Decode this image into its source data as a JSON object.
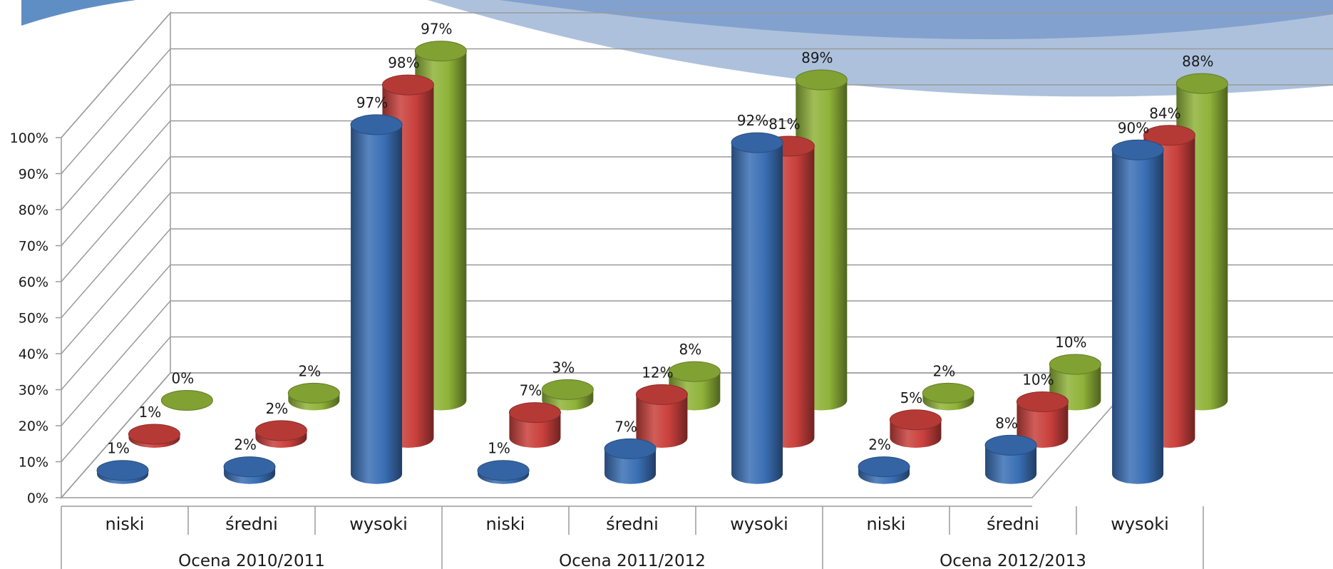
{
  "chart_data": {
    "type": "bar",
    "style": "3d-cylinder",
    "title": "",
    "xlabel": "",
    "ylabel": "",
    "ylim": [
      0,
      100
    ],
    "y_ticks": [
      "0%",
      "10%",
      "20%",
      "30%",
      "40%",
      "50%",
      "60%",
      "70%",
      "80%",
      "90%",
      "100%"
    ],
    "grid": true,
    "legend": "none",
    "groups": [
      "Ocena 2010/2011",
      "Ocena 2011/2012",
      "Ocena 2012/2013"
    ],
    "categories": [
      "niski",
      "średni",
      "wysoki"
    ],
    "series": [
      {
        "color": "#3a6fb5",
        "values": [
          [
            1,
            2,
            97
          ],
          [
            1,
            7,
            92
          ],
          [
            2,
            8,
            90
          ]
        ],
        "labels": [
          [
            "1%",
            "2%",
            "97%"
          ],
          [
            "1%",
            "7%",
            "92%"
          ],
          [
            "2%",
            "8%",
            "90%"
          ]
        ]
      },
      {
        "color": "#c9403c",
        "values": [
          [
            1,
            2,
            98
          ],
          [
            7,
            12,
            81
          ],
          [
            5,
            10,
            84
          ]
        ],
        "labels": [
          [
            "1%",
            "2%",
            "98%"
          ],
          [
            "7%",
            "12%",
            "81%"
          ],
          [
            "5%",
            "10%",
            "84%"
          ]
        ]
      },
      {
        "color": "#8fb339",
        "values": [
          [
            0,
            2,
            97
          ],
          [
            3,
            8,
            89
          ],
          [
            2,
            10,
            88
          ]
        ],
        "labels": [
          [
            "0%",
            "2%",
            "97%"
          ],
          [
            "3%",
            "8%",
            "89%"
          ],
          [
            "2%",
            "10%",
            "88%"
          ]
        ]
      }
    ]
  }
}
